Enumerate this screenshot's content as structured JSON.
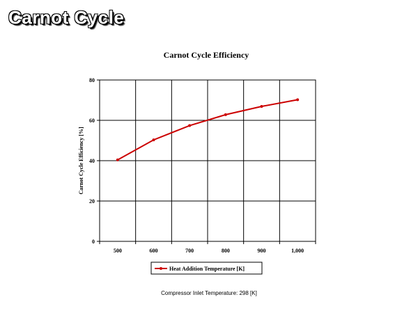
{
  "slide": {
    "title": "Carnot Cycle",
    "footnote": "Compressor Inlet Temperature:  298 [K]"
  },
  "chart_data": {
    "type": "line",
    "title": "Carnot Cycle Efficiency",
    "xlabel": "",
    "ylabel": "Carnot Cycle Efficiency [%]",
    "categories": [
      "500",
      "600",
      "700",
      "800",
      "900",
      "1,000"
    ],
    "x": [
      500,
      600,
      700,
      800,
      900,
      1000
    ],
    "ylim": [
      0,
      80
    ],
    "yticks": [
      0,
      20,
      40,
      60,
      80
    ],
    "grid": true,
    "legend_position": "bottom",
    "series": [
      {
        "name": "Heat Addition Temperature [K]",
        "color": "#cc0000",
        "values": [
          40.4,
          50.3,
          57.4,
          62.8,
          66.9,
          70.2
        ]
      }
    ]
  }
}
